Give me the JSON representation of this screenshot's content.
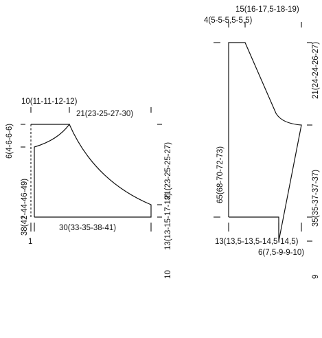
{
  "body_piece": {
    "shoulder_width": "10(11-11-12-12)",
    "armhole_shaping_width": "21(23-25-27-30)",
    "neck_depth": "6(4-6-6-6)",
    "length_to_armhole": "38(42-44-46-49)",
    "armhole_depth": "21(23-25-25-27)",
    "side_length": "13(13-15-17-18)",
    "lower_section": "10",
    "bottom_width": "30(33-35-38-41)",
    "edge_band": "1"
  },
  "sleeve_piece": {
    "cap_top_width": "15(16-17,5-18-19)",
    "cap_top_side": "4(5-5-5,5-5,5)",
    "total_length": "65(68-70-72-73)",
    "cap_height": "21(24-24-26-27)",
    "sleeve_length": "35(35-37-37-37)",
    "cuff_height": "9",
    "bottom_width": "13(13,5-13,5-14,5-14,5)",
    "increase_width": "6(7,5-9-9-10)"
  }
}
